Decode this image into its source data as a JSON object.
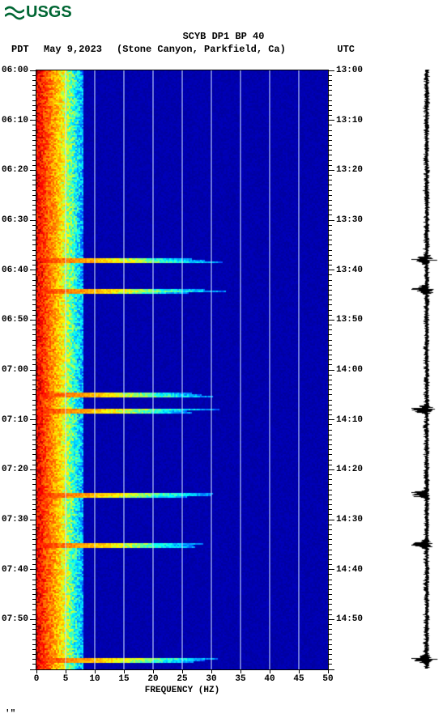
{
  "logo": {
    "text": "USGS",
    "color": "#006633"
  },
  "title": "SCYB DP1 BP 40",
  "subtitle": {
    "tz_left": "PDT",
    "date": "May 9,2023",
    "location": "(Stone Canyon, Parkfield, Ca)",
    "tz_right": "UTC"
  },
  "spectrogram": {
    "type": "spectrogram",
    "xlim": [
      0,
      50
    ],
    "xticks": [
      0,
      5,
      10,
      15,
      20,
      25,
      30,
      35,
      40,
      45,
      50
    ],
    "xlabel": "FREQUENCY (HZ)",
    "y_major_step_min": 10,
    "y_minor_step_min": 1,
    "left_labels": [
      "06:00",
      "06:10",
      "06:20",
      "06:30",
      "06:40",
      "06:50",
      "07:00",
      "07:10",
      "07:20",
      "07:30",
      "07:40",
      "07:50"
    ],
    "right_labels": [
      "13:00",
      "13:10",
      "13:20",
      "13:30",
      "13:40",
      "13:50",
      "14:00",
      "14:10",
      "14:20",
      "14:30",
      "14:40",
      "14:50"
    ],
    "background_color": "#0000d0",
    "grid_color": "#cce0ff",
    "palette": {
      "low": "#000080",
      "mid_low": "#0000ff",
      "mid": "#00ffff",
      "mid_high": "#ffff00",
      "high": "#ff8000",
      "very_high": "#ff0000",
      "max": "#800000"
    },
    "low_freq_band_hz": [
      0,
      8
    ],
    "event_rows_min": [
      38,
      44,
      65,
      68,
      85,
      95,
      118
    ]
  },
  "waveform": {
    "color": "#000000",
    "base_amplitude": 3,
    "spike_minutes": [
      38,
      44,
      68,
      85,
      95,
      118
    ],
    "spike_amplitude": 14
  },
  "footer_mark": "'\""
}
